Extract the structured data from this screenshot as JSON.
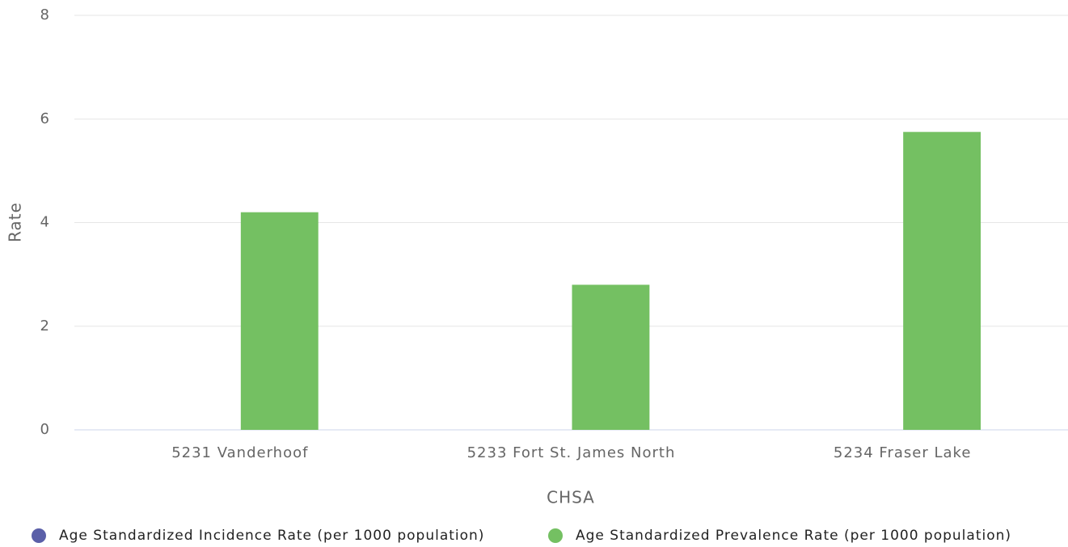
{
  "chart_data": {
    "type": "bar",
    "categories": [
      "5231 Vanderhoof",
      "5233 Fort St. James North",
      "5234 Fraser Lake"
    ],
    "series": [
      {
        "name": "Age Standardized Incidence Rate (per 1000 population)",
        "color": "#5a5fa8",
        "values": [
          null,
          null,
          null
        ]
      },
      {
        "name": "Age Standardized Prevalence Rate (per 1000 population)",
        "color": "#74c062",
        "values": [
          4.2,
          2.8,
          5.75
        ]
      }
    ],
    "xlabel": "CHSA",
    "ylabel": "Rate",
    "ylim": [
      0,
      8
    ],
    "yticks": [
      0,
      2,
      4,
      6,
      8
    ],
    "grid": true,
    "legend": "bottom"
  }
}
